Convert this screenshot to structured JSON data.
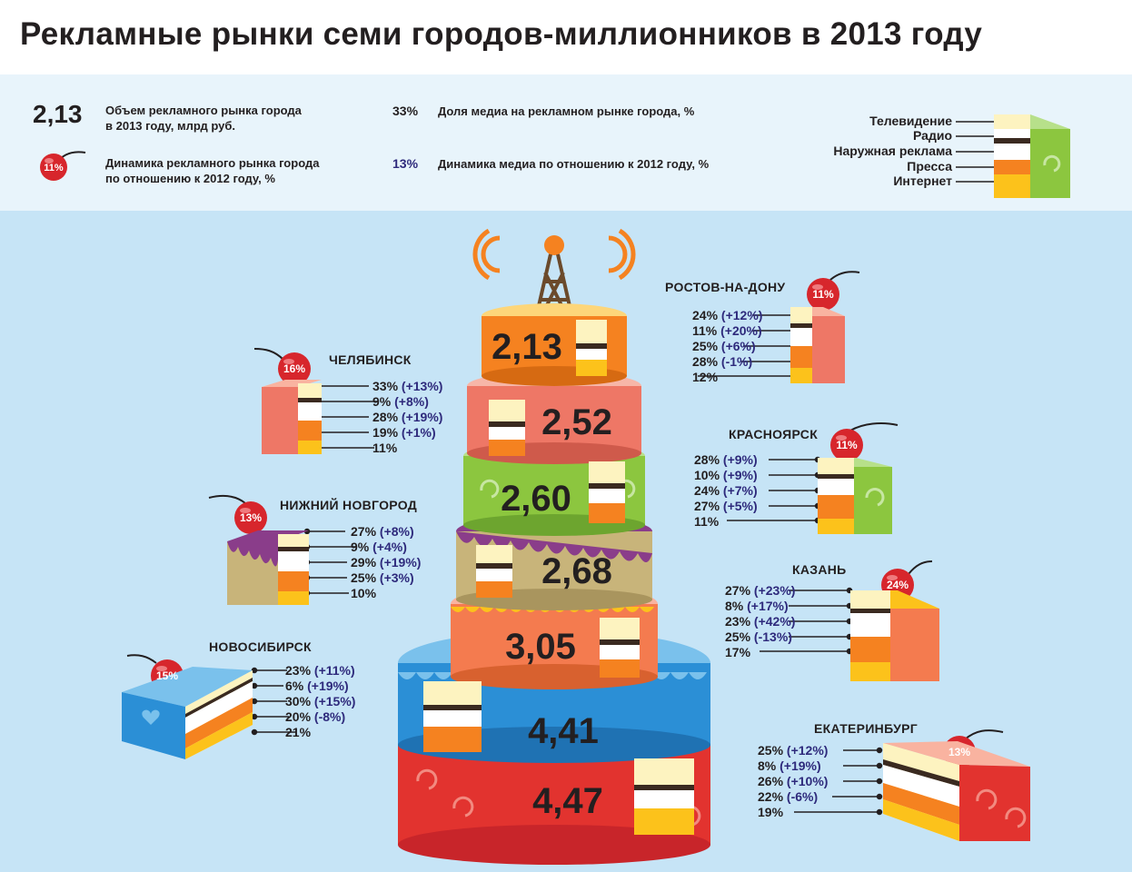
{
  "title": "Рекламные рынки семи городов-миллионников в 2013 году",
  "legend": {
    "volume_sample": "2,13",
    "volume_text": "Объем рекламного рынка города\nв 2013 году, млрд руб.",
    "dynamics_sample": "11%",
    "dynamics_text": "Динамика рекламного рынка города\nпо отношению к 2012 году, %",
    "share_sample": "33%",
    "share_text": "Доля медиа на рекламном рынке города, %",
    "media_dyn_sample": "13%",
    "media_dyn_text": "Динамика медиа по отношению к 2012 году, %",
    "layers": [
      "Телевидение",
      "Радио",
      "Наружная реклама",
      "Пресса",
      "Интернет"
    ]
  },
  "colors": {
    "text_dark": "#231f20",
    "dynamics_blue": "#2e2a7c",
    "cherry_red": "#d7262c",
    "tv_layer": "#fdf3c0",
    "radio_layer": "#3a2a20",
    "outdoor_layer": "#ffffff",
    "press_layer": "#f58220",
    "internet_layer": "#fcc21b"
  },
  "tower_tiers": [
    {
      "value": "2,13",
      "color": "#f58220"
    },
    {
      "value": "2,52",
      "color": "#ee7766"
    },
    {
      "value": "2,60",
      "color": "#8cc63f"
    },
    {
      "value": "2,68",
      "color": "#c8b47a"
    },
    {
      "value": "3,05",
      "color": "#f47b4f"
    },
    {
      "value": "4,41",
      "color": "#2b8fd6"
    },
    {
      "value": "4,47",
      "color": "#e2332f"
    }
  ],
  "cities": [
    {
      "name": "РОСТОВ-НА-ДОНУ",
      "dynamics": "11%",
      "rows": [
        {
          "share": "24%",
          "dyn": "(+12%)"
        },
        {
          "share": "11%",
          "dyn": "(+20%)"
        },
        {
          "share": "25%",
          "dyn": "(+6%)"
        },
        {
          "share": "28%",
          "dyn": "(-1%)"
        },
        {
          "share": "12%",
          "dyn": ""
        }
      ]
    },
    {
      "name": "ЧЕЛЯБИНСК",
      "dynamics": "16%",
      "rows": [
        {
          "share": "33%",
          "dyn": "(+13%)"
        },
        {
          "share": "9%",
          "dyn": "(+8%)"
        },
        {
          "share": "28%",
          "dyn": "(+19%)"
        },
        {
          "share": "19%",
          "dyn": "(+1%)"
        },
        {
          "share": "11%",
          "dyn": ""
        }
      ]
    },
    {
      "name": "КРАСНОЯРСК",
      "dynamics": "11%",
      "rows": [
        {
          "share": "28%",
          "dyn": "(+9%)"
        },
        {
          "share": "10%",
          "dyn": "(+9%)"
        },
        {
          "share": "24%",
          "dyn": "(+7%)"
        },
        {
          "share": "27%",
          "dyn": "(+5%)"
        },
        {
          "share": "11%",
          "dyn": ""
        }
      ]
    },
    {
      "name": "НИЖНИЙ НОВГОРОД",
      "dynamics": "13%",
      "rows": [
        {
          "share": "27%",
          "dyn": "(+8%)"
        },
        {
          "share": "9%",
          "dyn": "(+4%)"
        },
        {
          "share": "29%",
          "dyn": "(+19%)"
        },
        {
          "share": "25%",
          "dyn": "(+3%)"
        },
        {
          "share": "10%",
          "dyn": ""
        }
      ]
    },
    {
      "name": "КАЗАНЬ",
      "dynamics": "24%",
      "rows": [
        {
          "share": "27%",
          "dyn": "(+23%)"
        },
        {
          "share": "8%",
          "dyn": "(+17%)"
        },
        {
          "share": "23%",
          "dyn": "(+42%)"
        },
        {
          "share": "25%",
          "dyn": "(-13%)"
        },
        {
          "share": "17%",
          "dyn": ""
        }
      ]
    },
    {
      "name": "НОВОСИБИРСК",
      "dynamics": "15%",
      "rows": [
        {
          "share": "23%",
          "dyn": "(+11%)"
        },
        {
          "share": "6%",
          "dyn": "(+19%)"
        },
        {
          "share": "30%",
          "dyn": "(+15%)"
        },
        {
          "share": "20%",
          "dyn": "(-8%)"
        },
        {
          "share": "21%",
          "dyn": ""
        }
      ]
    },
    {
      "name": "ЕКАТЕРИНБУРГ",
      "dynamics": "13%",
      "rows": [
        {
          "share": "25%",
          "dyn": "(+12%)"
        },
        {
          "share": "8%",
          "dyn": "(+19%)"
        },
        {
          "share": "26%",
          "dyn": "(+10%)"
        },
        {
          "share": "22%",
          "dyn": "(-6%)"
        },
        {
          "share": "19%",
          "dyn": ""
        }
      ]
    }
  ]
}
